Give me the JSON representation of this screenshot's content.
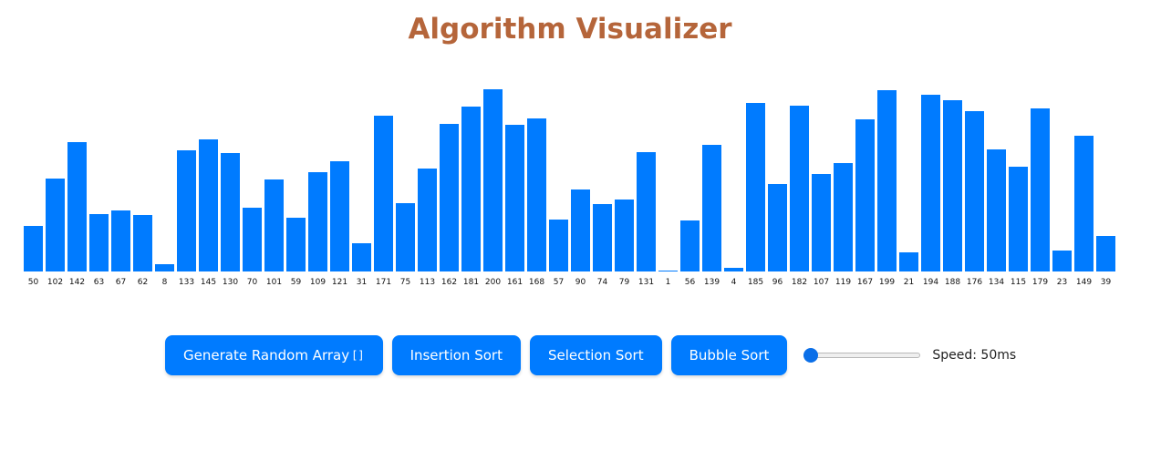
{
  "title": "Algorithm Visualizer",
  "colors": {
    "title": "#b5653a",
    "bar": "#007bff",
    "button": "#007bff",
    "slider": "#0b6fe8"
  },
  "array": [
    50,
    102,
    142,
    63,
    67,
    62,
    8,
    133,
    145,
    130,
    70,
    101,
    59,
    109,
    121,
    31,
    171,
    75,
    113,
    162,
    181,
    200,
    161,
    168,
    57,
    90,
    74,
    79,
    131,
    1,
    56,
    139,
    4,
    185,
    96,
    182,
    107,
    119,
    167,
    199,
    21,
    194,
    188,
    176,
    134,
    115,
    179,
    23,
    149,
    39
  ],
  "controls": {
    "generate_label": "Generate Random Array",
    "generate_glyph": "[]",
    "insertion_label": "Insertion Sort",
    "selection_label": "Selection Sort",
    "bubble_label": "Bubble Sort",
    "speed_value": 50,
    "speed_min": 50,
    "speed_max": 1000,
    "speed_text": "Speed: 50ms"
  }
}
